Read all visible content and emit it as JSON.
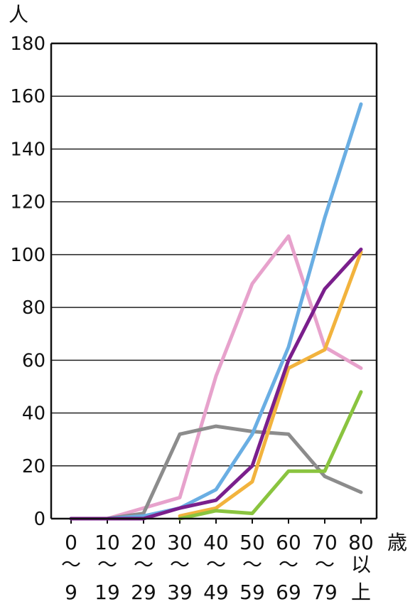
{
  "chart_data": {
    "type": "line",
    "ylabel": "人",
    "xlabel": "歳",
    "ylim": [
      0,
      180
    ],
    "yticks": [
      "0",
      "20",
      "40",
      "60",
      "80",
      "100",
      "120",
      "140",
      "160",
      "180"
    ],
    "grid": true,
    "categories": [
      [
        "0",
        "〜",
        "9"
      ],
      [
        "10",
        "〜",
        "19"
      ],
      [
        "20",
        "〜",
        "29"
      ],
      [
        "30",
        "〜",
        "39"
      ],
      [
        "40",
        "〜",
        "49"
      ],
      [
        "50",
        "〜",
        "59"
      ],
      [
        "60",
        "〜",
        "69"
      ],
      [
        "70",
        "〜",
        "79"
      ],
      [
        "80",
        "以",
        "上"
      ]
    ],
    "series": [
      {
        "color": "#e7a2cc",
        "values": [
          0,
          0,
          4,
          8,
          54,
          89,
          107,
          65,
          57
        ]
      },
      {
        "color": "#8c8c8c",
        "values": [
          0,
          0,
          2,
          32,
          35,
          33,
          32,
          16,
          10
        ]
      },
      {
        "color": "#6aaee3",
        "values": [
          0,
          0,
          1,
          4,
          11,
          32,
          65,
          114,
          157
        ]
      },
      {
        "color": "#f2b33d",
        "values": [
          null,
          null,
          null,
          1,
          4,
          14,
          57,
          64,
          101
        ]
      },
      {
        "color": "#8ac43f",
        "values": [
          null,
          null,
          null,
          0,
          3,
          2,
          18,
          18,
          48
        ]
      },
      {
        "color": "#7a1f8c",
        "values": [
          0,
          0,
          0,
          4,
          7,
          20,
          60,
          87,
          102
        ]
      }
    ]
  }
}
